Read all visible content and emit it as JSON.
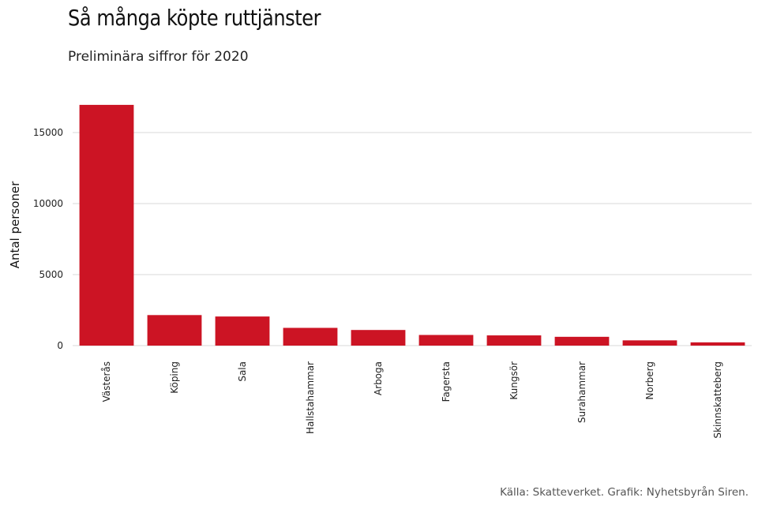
{
  "title": "Så många köpte ruttjänster",
  "subtitle": "Preliminära siffror för 2020",
  "source": "Källa: Skatteverket. Grafik: Nyhetsbyrån Siren.",
  "colors": {
    "bar": "#cc1424",
    "grid": "#e6e6e6"
  },
  "chart_data": {
    "type": "bar",
    "title": "Så många köpte ruttjänster",
    "subtitle": "Preliminära siffror för 2020",
    "xlabel": "",
    "ylabel": "Antal personer",
    "categories": [
      "Västerås",
      "Köping",
      "Sala",
      "Hallstahammar",
      "Arboga",
      "Fagersta",
      "Kungsör",
      "Surahammar",
      "Norberg",
      "Skinnskatteberg"
    ],
    "values": [
      16950,
      2150,
      2050,
      1250,
      1100,
      750,
      720,
      620,
      370,
      230
    ],
    "yticks": [
      0,
      5000,
      10000,
      15000
    ],
    "ylim": [
      0,
      17000
    ],
    "grid": true,
    "legend": "none"
  }
}
